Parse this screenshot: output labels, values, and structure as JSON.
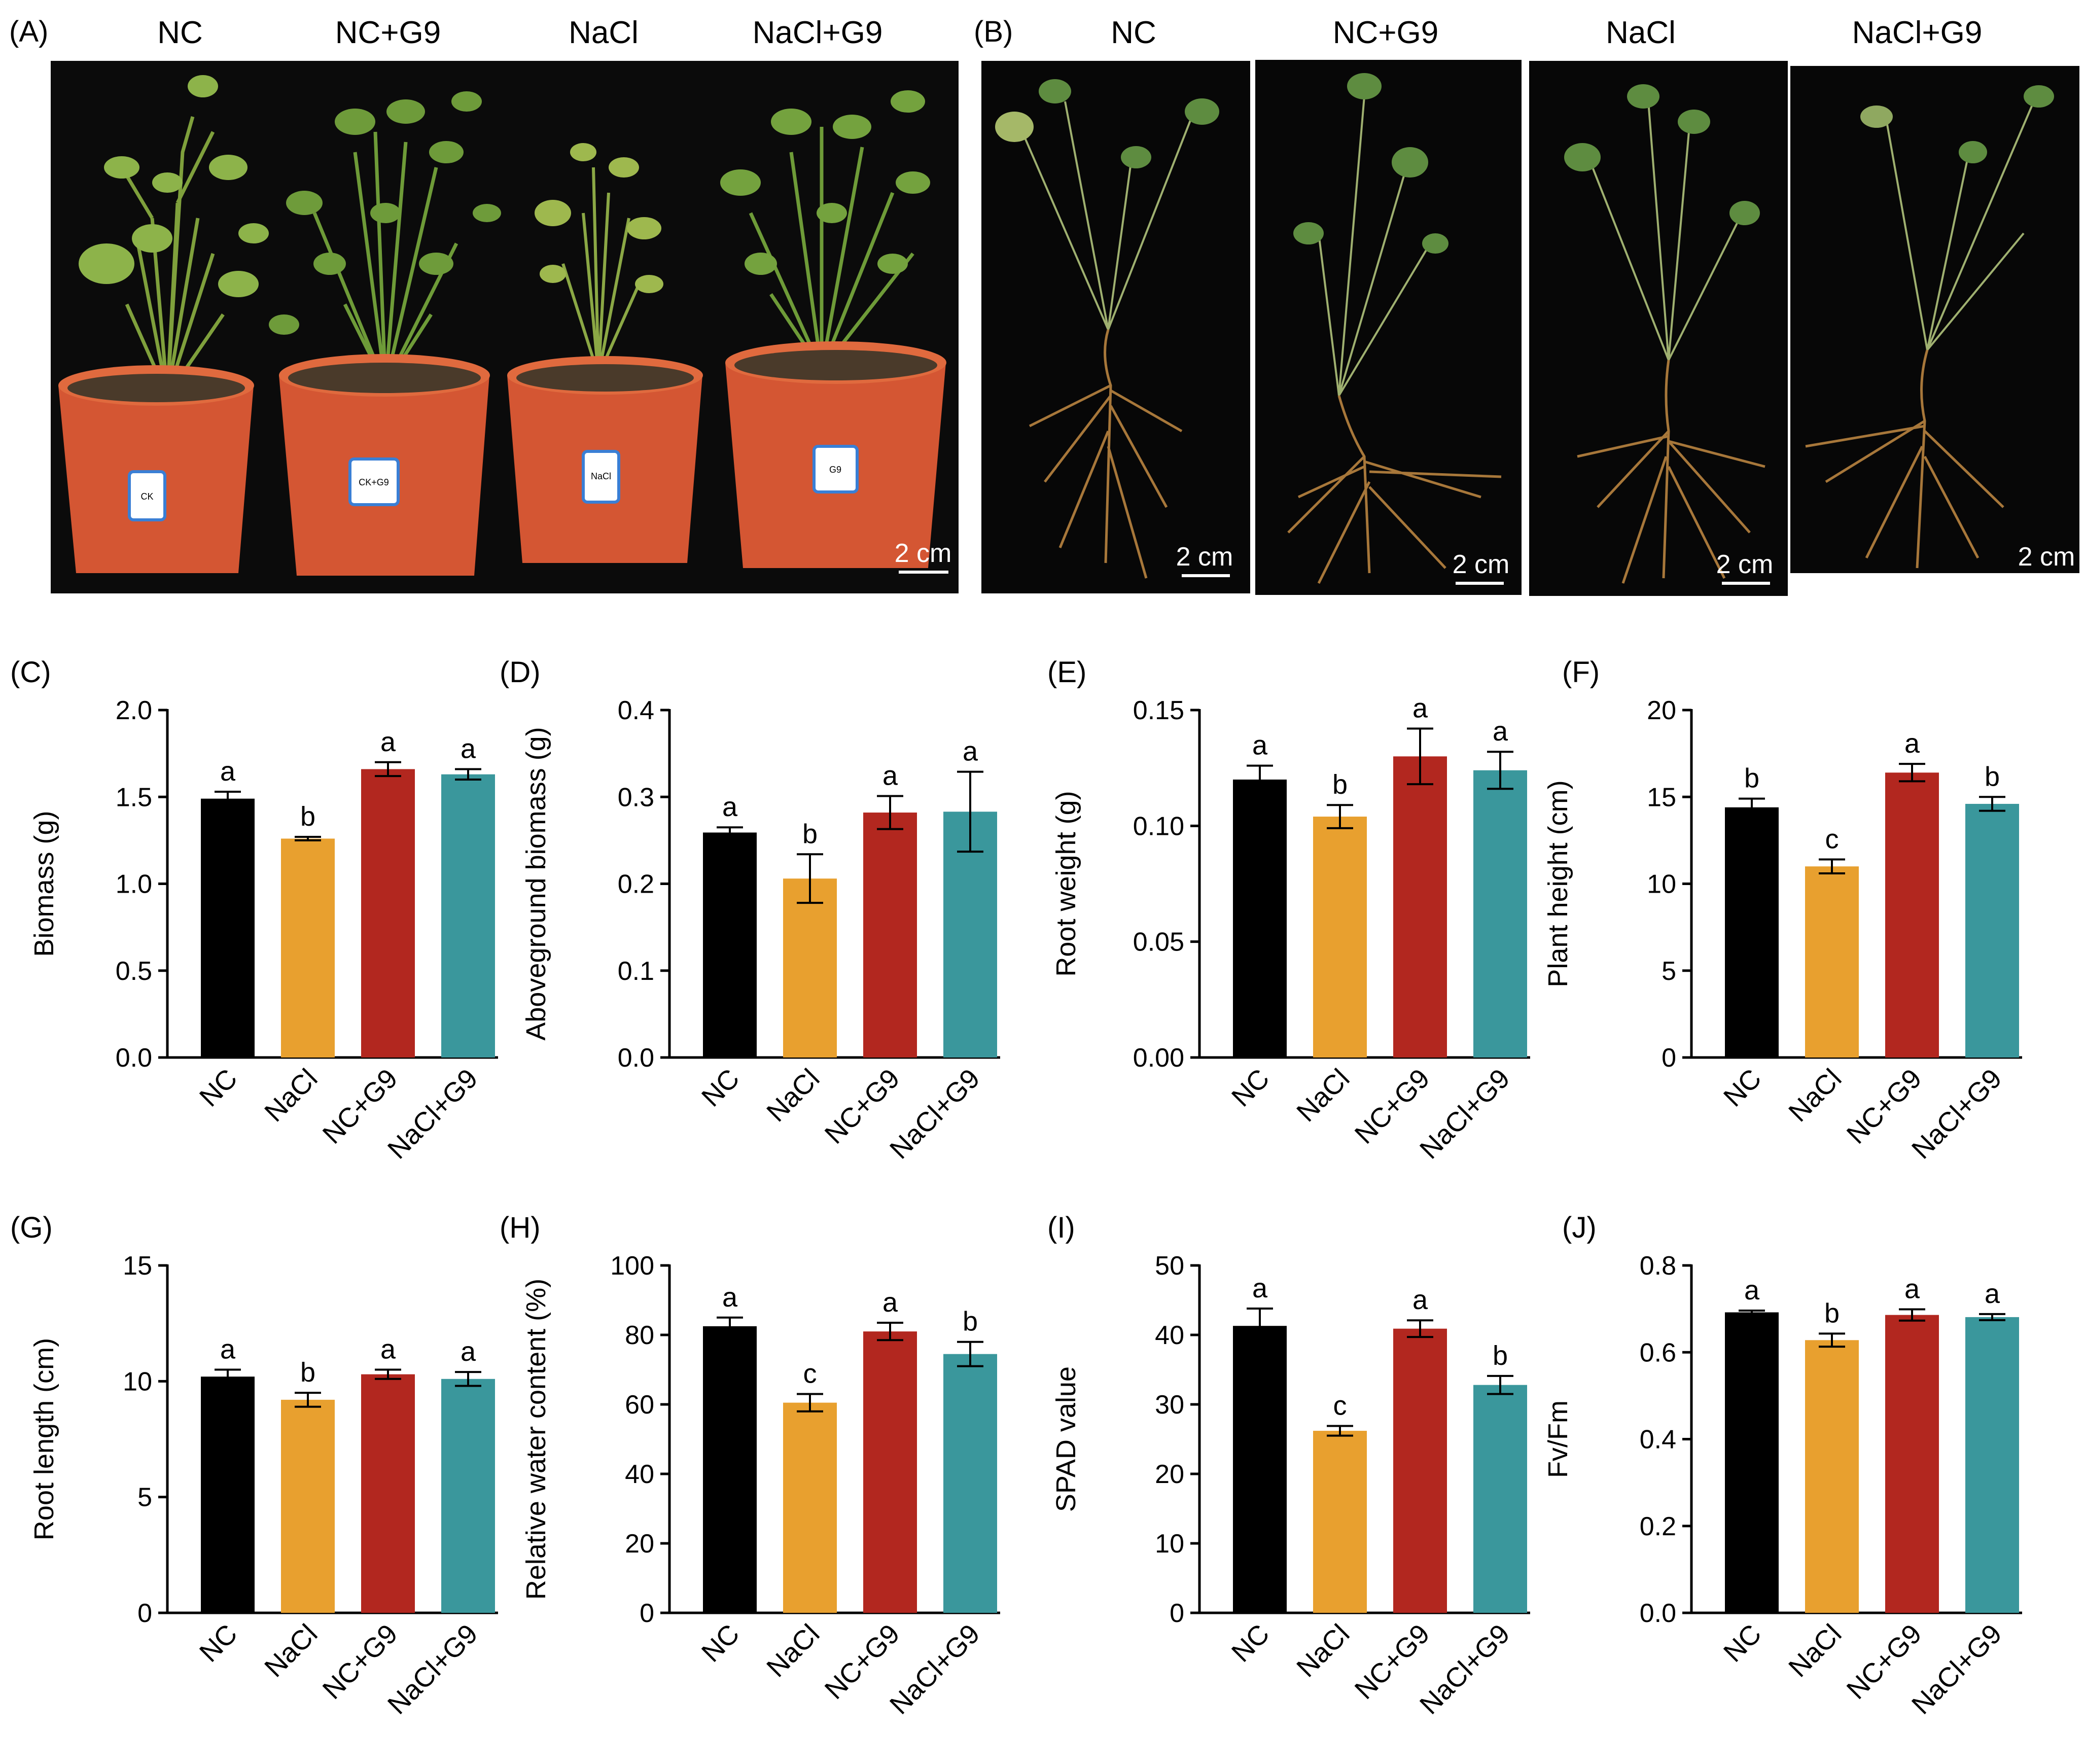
{
  "photo_panels": {
    "A": {
      "letter": "(A)",
      "labels": [
        "NC",
        "NC+G9",
        "NaCl",
        "NaCl+G9"
      ],
      "scale_bar": "2 cm",
      "pot_tags": [
        "CK",
        "CK+G9",
        "NaCl",
        "G9"
      ]
    },
    "B": {
      "letter": "(B)",
      "labels": [
        "NC",
        "NC+G9",
        "NaCl",
        "NaCl+G9"
      ],
      "scale_bars": [
        "2 cm",
        "2 cm",
        "2 cm",
        "2 cm"
      ]
    }
  },
  "colors": {
    "NC": "#000000",
    "NaCl": "#E8A02F",
    "NC+G9": "#B2271F",
    "NaCl+G9": "#3A979C",
    "photo_background": "#0a0a0a",
    "pot": "#D45633",
    "leaf": "#6F9C3A",
    "root": "#A7773A"
  },
  "chart_data": [
    {
      "panel": "(C)",
      "type": "bar",
      "ylabel": "Biomass (g)",
      "categories": [
        "NC",
        "NaCl",
        "NC+G9",
        "NaCl+G9"
      ],
      "values": [
        1.49,
        1.26,
        1.66,
        1.63
      ],
      "errors": [
        0.04,
        0.01,
        0.04,
        0.03
      ],
      "letters": [
        "a",
        "b",
        "a",
        "a"
      ],
      "ylim": [
        0,
        2.0
      ],
      "yticks": [
        "0.0",
        "0.5",
        "1.0",
        "1.5",
        "2.0"
      ]
    },
    {
      "panel": "(D)",
      "type": "bar",
      "ylabel": "Aboveground biomass (g)",
      "categories": [
        "NC",
        "NaCl",
        "NC+G9",
        "NaCl+G9"
      ],
      "values": [
        0.259,
        0.206,
        0.282,
        0.283
      ],
      "errors": [
        0.006,
        0.028,
        0.019,
        0.046
      ],
      "letters": [
        "a",
        "b",
        "a",
        "a"
      ],
      "ylim": [
        0,
        0.4
      ],
      "yticks": [
        "0.0",
        "0.1",
        "0.2",
        "0.3",
        "0.4"
      ]
    },
    {
      "panel": "(E)",
      "type": "bar",
      "ylabel": "Root weight (g)",
      "categories": [
        "NC",
        "NaCl",
        "NC+G9",
        "NaCl+G9"
      ],
      "values": [
        0.12,
        0.104,
        0.13,
        0.124
      ],
      "errors": [
        0.006,
        0.005,
        0.012,
        0.008
      ],
      "letters": [
        "a",
        "b",
        "a",
        "a"
      ],
      "ylim": [
        0,
        0.15
      ],
      "yticks": [
        "0.00",
        "0.05",
        "0.10",
        "0.15"
      ]
    },
    {
      "panel": "(F)",
      "type": "bar",
      "ylabel": "Plant height (cm)",
      "categories": [
        "NC",
        "NaCl",
        "NC+G9",
        "NaCl+G9"
      ],
      "values": [
        14.4,
        11.0,
        16.4,
        14.6
      ],
      "errors": [
        0.5,
        0.4,
        0.5,
        0.4
      ],
      "letters": [
        "b",
        "c",
        "a",
        "b"
      ],
      "ylim": [
        0,
        20
      ],
      "yticks": [
        "0",
        "5",
        "10",
        "15",
        "20"
      ]
    },
    {
      "panel": "(G)",
      "type": "bar",
      "ylabel": "Root length (cm)",
      "categories": [
        "NC",
        "NaCl",
        "NC+G9",
        "NaCl+G9"
      ],
      "values": [
        10.2,
        9.2,
        10.3,
        10.1
      ],
      "errors": [
        0.3,
        0.3,
        0.2,
        0.3
      ],
      "letters": [
        "a",
        "b",
        "a",
        "a"
      ],
      "ylim": [
        0,
        15
      ],
      "yticks": [
        "0",
        "5",
        "10",
        "15"
      ]
    },
    {
      "panel": "(H)",
      "type": "bar",
      "ylabel": "Relative water content (%)",
      "categories": [
        "NC",
        "NaCl",
        "NC+G9",
        "NaCl+G9"
      ],
      "values": [
        82.5,
        60.5,
        81.0,
        74.5
      ],
      "errors": [
        2.5,
        2.5,
        2.5,
        3.5
      ],
      "letters": [
        "a",
        "c",
        "a",
        "b"
      ],
      "ylim": [
        0,
        100
      ],
      "yticks": [
        "0",
        "20",
        "40",
        "60",
        "80",
        "100"
      ]
    },
    {
      "panel": "(I)",
      "type": "bar",
      "ylabel": "SPAD value",
      "categories": [
        "NC",
        "NaCl",
        "NC+G9",
        "NaCl+G9"
      ],
      "values": [
        41.3,
        26.2,
        40.9,
        32.8
      ],
      "errors": [
        2.5,
        0.7,
        1.2,
        1.3
      ],
      "letters": [
        "a",
        "c",
        "a",
        "b"
      ],
      "ylim": [
        0,
        50
      ],
      "yticks": [
        "0",
        "10",
        "20",
        "30",
        "40",
        "50"
      ]
    },
    {
      "panel": "(J)",
      "type": "bar",
      "ylabel": "Fv/Fm",
      "categories": [
        "NC",
        "NaCl",
        "NC+G9",
        "NaCl+G9"
      ],
      "values": [
        0.692,
        0.628,
        0.686,
        0.681
      ],
      "errors": [
        0.004,
        0.015,
        0.013,
        0.007
      ],
      "letters": [
        "a",
        "b",
        "a",
        "a"
      ],
      "ylim": [
        0,
        0.8
      ],
      "yticks": [
        "0.0",
        "0.2",
        "0.4",
        "0.6",
        "0.8"
      ]
    }
  ]
}
